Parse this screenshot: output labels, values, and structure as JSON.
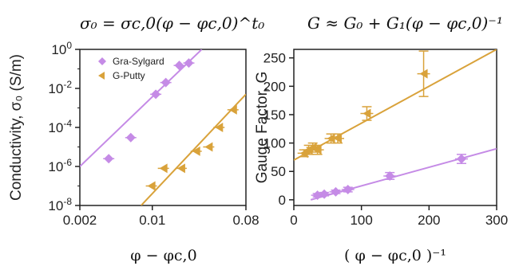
{
  "chart_data": [
    {
      "type": "scatter",
      "title": "σ₀ = σc,0(φ − φc,0)^t₀",
      "xlabel": "φ − φc,0",
      "ylabel": "Conductivity, σ₀ (S/m)",
      "xscale": "log",
      "yscale": "log",
      "xlim": [
        0.002,
        0.08
      ],
      "ylim": [
        1e-08,
        1
      ],
      "xticks": [
        "0.002",
        "0.01",
        "0.08"
      ],
      "yticks": [
        {
          "base": "10",
          "exp": "0"
        },
        {
          "base": "10",
          "exp": "-2"
        },
        {
          "base": "10",
          "exp": "-4"
        },
        {
          "base": "10",
          "exp": "-6"
        },
        {
          "base": "10",
          "exp": "-8"
        }
      ],
      "legend_position": "top-left",
      "series": [
        {
          "name": "Gra-Sylgard",
          "color": "#c58be6",
          "marker": "diamond",
          "x": [
            0.0038,
            0.0062,
            0.0108,
            0.0135,
            0.0182,
            0.0225
          ],
          "y": [
            2.5e-06,
            3e-05,
            0.005,
            0.02,
            0.15,
            0.2
          ],
          "fit": {
            "x": [
              0.002,
              0.03
            ],
            "y": [
              1e-06,
              1.0
            ]
          }
        },
        {
          "name": "G-Putty",
          "color": "#d9a23a",
          "marker": "left-triangle",
          "x": [
            0.0098,
            0.0128,
            0.019,
            0.0265,
            0.035,
            0.044,
            0.06
          ],
          "y": [
            1e-07,
            8e-07,
            8e-07,
            6e-06,
            1e-05,
            0.0001,
            0.0008
          ],
          "fit": {
            "x": [
              0.0078,
              0.08
            ],
            "y": [
              1e-08,
              0.005
            ]
          }
        }
      ]
    },
    {
      "type": "scatter",
      "title": "G ≈ G₀ + G₁(φ − φc,0)⁻¹",
      "xlabel": "( φ − φc,0 )⁻¹",
      "ylabel": "Gauge Factor, G",
      "xlim": [
        0,
        300
      ],
      "ylim": [
        -10,
        265
      ],
      "xticks": [
        "0",
        "100",
        "200",
        "300"
      ],
      "yticks": [
        "0",
        "50",
        "100",
        "150",
        "200",
        "250"
      ],
      "series": [
        {
          "name": "G-Putty",
          "color": "#d9a23a",
          "marker": "left-triangle",
          "x": [
            15,
            22,
            28,
            35,
            55,
            65,
            108,
            192
          ],
          "y": [
            82,
            88,
            92,
            88,
            108,
            108,
            152,
            222
          ],
          "yerr": [
            6,
            8,
            8,
            8,
            8,
            8,
            12,
            40
          ],
          "fit": {
            "x": [
              0,
              300
            ],
            "y": [
              70,
              265
            ]
          }
        },
        {
          "name": "Gra-Sylgard",
          "color": "#c58be6",
          "marker": "diamond",
          "x": [
            35,
            45,
            62,
            80,
            142,
            248
          ],
          "y": [
            8,
            10,
            14,
            18,
            42,
            72
          ],
          "yerr": [
            3,
            3,
            3,
            4,
            6,
            8
          ],
          "fit": {
            "x": [
              25,
              300
            ],
            "y": [
              0,
              90
            ]
          }
        }
      ]
    }
  ]
}
